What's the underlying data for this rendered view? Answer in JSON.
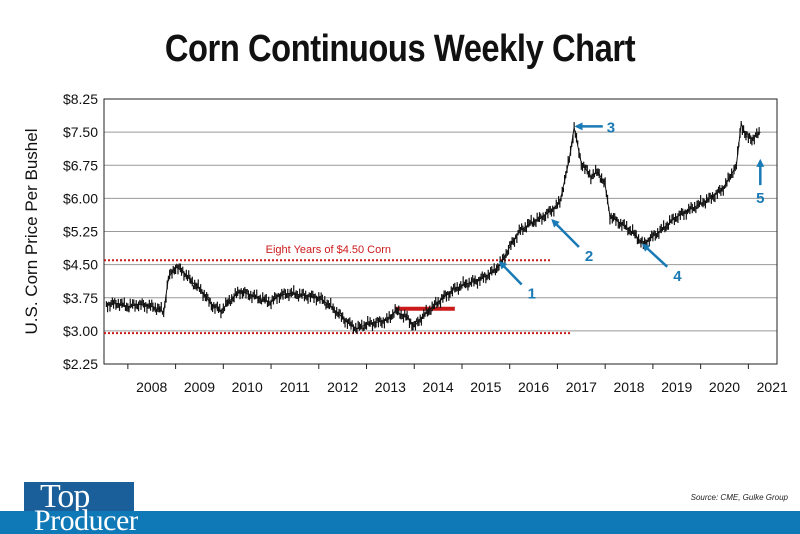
{
  "chart_data": {
    "type": "line",
    "style": "weekly-bar-ohlc",
    "title": "Corn Continuous Weekly Chart",
    "ylabel": "U.S. Corn Price Per Bushel",
    "xlabel": "",
    "ylim": [
      2.25,
      8.25
    ],
    "y_ticks": [
      2.25,
      3.0,
      3.75,
      4.5,
      5.25,
      6.0,
      6.75,
      7.5,
      8.25
    ],
    "y_tick_labels": [
      "$2.25",
      "$3.00",
      "$3.75",
      "$4.50",
      "$5.25",
      "$6.00",
      "$6.75",
      "$7.50",
      "$8.25"
    ],
    "x_range": [
      2007.5,
      2021.6
    ],
    "x_tick_labels": [
      "2008",
      "2009",
      "2010",
      "2011",
      "2012",
      "2013",
      "2014",
      "2015",
      "2016",
      "2017",
      "2018",
      "2019",
      "2020",
      "2021"
    ],
    "grid": "horizontal",
    "series": [
      {
        "values": [
          [
            2007.55,
            3.6
          ],
          [
            2007.8,
            3.62
          ],
          [
            2008.0,
            3.55
          ],
          [
            2008.2,
            3.6
          ],
          [
            2008.4,
            3.58
          ],
          [
            2008.65,
            3.5
          ],
          [
            2008.75,
            3.42
          ],
          [
            2008.85,
            4.2
          ],
          [
            2009.0,
            4.45
          ],
          [
            2009.15,
            4.35
          ],
          [
            2009.35,
            4.1
          ],
          [
            2009.55,
            3.9
          ],
          [
            2009.75,
            3.6
          ],
          [
            2009.95,
            3.45
          ],
          [
            2010.15,
            3.7
          ],
          [
            2010.35,
            3.9
          ],
          [
            2010.6,
            3.8
          ],
          [
            2010.85,
            3.7
          ],
          [
            2011.0,
            3.65
          ],
          [
            2011.15,
            3.8
          ],
          [
            2011.4,
            3.85
          ],
          [
            2011.7,
            3.8
          ],
          [
            2012.0,
            3.75
          ],
          [
            2012.2,
            3.6
          ],
          [
            2012.45,
            3.35
          ],
          [
            2012.65,
            3.15
          ],
          [
            2012.8,
            3.05
          ],
          [
            2013.0,
            3.15
          ],
          [
            2013.25,
            3.2
          ],
          [
            2013.45,
            3.25
          ],
          [
            2013.6,
            3.45
          ],
          [
            2013.85,
            3.3
          ],
          [
            2014.0,
            3.1
          ],
          [
            2014.15,
            3.3
          ],
          [
            2014.35,
            3.5
          ],
          [
            2014.6,
            3.75
          ],
          [
            2014.85,
            3.95
          ],
          [
            2015.05,
            4.05
          ],
          [
            2015.35,
            4.15
          ],
          [
            2015.6,
            4.3
          ],
          [
            2015.8,
            4.5
          ],
          [
            2016.0,
            4.9
          ],
          [
            2016.2,
            5.25
          ],
          [
            2016.45,
            5.45
          ],
          [
            2016.65,
            5.55
          ],
          [
            2016.9,
            5.75
          ],
          [
            2017.05,
            5.9
          ],
          [
            2017.15,
            6.4
          ],
          [
            2017.25,
            6.9
          ],
          [
            2017.35,
            7.6
          ],
          [
            2017.5,
            6.8
          ],
          [
            2017.7,
            6.5
          ],
          [
            2017.85,
            6.6
          ],
          [
            2018.0,
            6.3
          ],
          [
            2018.1,
            5.6
          ],
          [
            2018.3,
            5.45
          ],
          [
            2018.5,
            5.3
          ],
          [
            2018.65,
            5.15
          ],
          [
            2018.8,
            4.95
          ],
          [
            2018.95,
            5.1
          ],
          [
            2019.2,
            5.3
          ],
          [
            2019.45,
            5.55
          ],
          [
            2019.7,
            5.7
          ],
          [
            2019.95,
            5.85
          ],
          [
            2020.2,
            6.0
          ],
          [
            2020.45,
            6.2
          ],
          [
            2020.6,
            6.45
          ],
          [
            2020.75,
            6.75
          ],
          [
            2020.85,
            7.7
          ],
          [
            2020.95,
            7.4
          ],
          [
            2021.1,
            7.35
          ],
          [
            2021.25,
            7.5
          ]
        ]
      }
    ],
    "annotations": [
      {
        "text": "Eight Years of $4.50 Corn",
        "type": "dotted-line",
        "y": 4.6,
        "x_start": 2007.5,
        "x_end": 2016.85,
        "color": "#cc1a1a"
      },
      {
        "text": "",
        "type": "dotted-line",
        "y": 2.95,
        "x_start": 2007.5,
        "x_end": 2017.3,
        "color": "#cc1a1a"
      },
      {
        "text": "",
        "type": "segment",
        "y": 3.5,
        "x_start": 2013.6,
        "x_end": 2014.85,
        "color": "#cc1a1a"
      },
      {
        "text": "1",
        "type": "arrow",
        "target": [
          2015.8,
          4.55
        ],
        "from": [
          2016.25,
          4.05
        ]
      },
      {
        "text": "2",
        "type": "arrow",
        "target": [
          2016.9,
          5.5
        ],
        "from": [
          2017.45,
          4.9
        ]
      },
      {
        "text": "3",
        "type": "arrow",
        "target": [
          2017.4,
          7.63
        ],
        "from": [
          2017.95,
          7.63
        ]
      },
      {
        "text": "4",
        "type": "arrow",
        "target": [
          2018.8,
          4.95
        ],
        "from": [
          2019.3,
          4.45
        ]
      },
      {
        "text": "5",
        "type": "arrow",
        "target": [
          2021.25,
          6.85
        ],
        "from": [
          2021.25,
          6.3
        ]
      }
    ],
    "annotation_color": "#1a7ab5",
    "line_color": "#111111"
  },
  "source": "Source: CME, Gulke Group",
  "logo": {
    "line1": "Top",
    "line2": "Producer"
  },
  "colors": {
    "footer": "#0f79b8",
    "logo_bg": "#1a5f9a",
    "grid": "#999999"
  }
}
